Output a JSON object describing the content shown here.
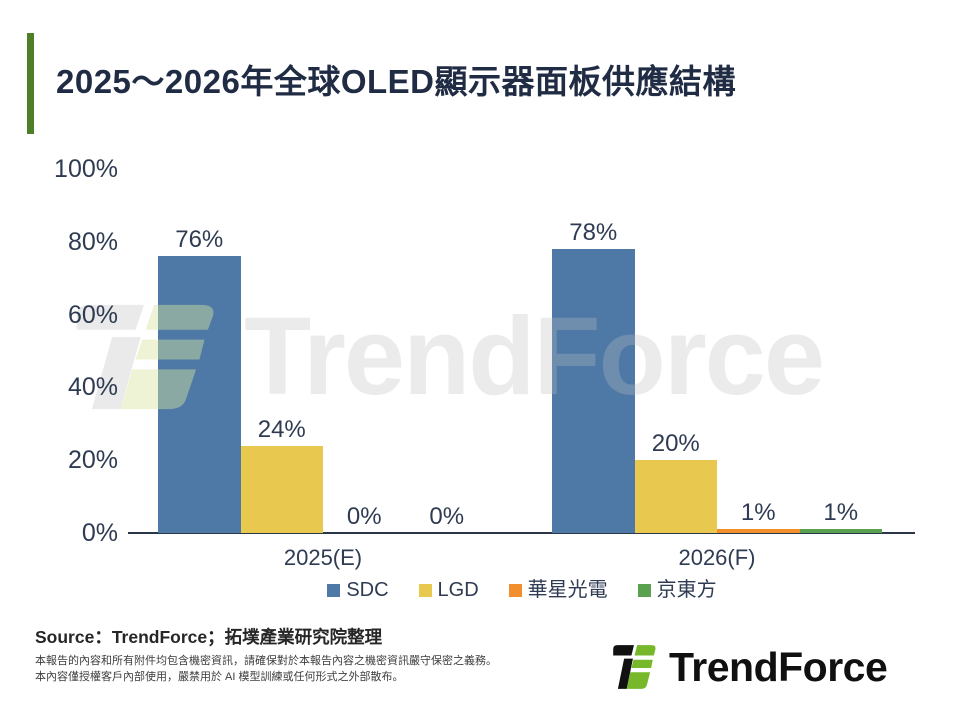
{
  "title": "2025～2026年全球OLED顯示器面板供應結構",
  "chart_data": {
    "type": "bar",
    "title": "2025～2026年全球OLED顯示器面板供應結構",
    "categories": [
      "2025(E)",
      "2026(F)"
    ],
    "series": [
      {
        "name": "SDC",
        "color": "#4E79A7",
        "values": [
          76,
          78
        ]
      },
      {
        "name": "LGD",
        "color": "#E8C84E",
        "values": [
          24,
          20
        ]
      },
      {
        "name": "華星光電",
        "color": "#F28E2B",
        "values": [
          0,
          1
        ]
      },
      {
        "name": "京東方",
        "color": "#59A14F",
        "values": [
          0,
          1
        ]
      }
    ],
    "ylim": [
      0,
      100
    ],
    "y_ticks": [
      0,
      20,
      40,
      60,
      80,
      100
    ],
    "y_tick_suffix": "%",
    "data_label_suffix": "%",
    "grid": false,
    "legend_position": "bottom"
  },
  "watermark": {
    "text": "TrendForce"
  },
  "footer": {
    "source": "Source：TrendForce；拓墣產業研究院整理",
    "disclaimer_line1": "本報告的內容和所有附件均包含機密資訊，請確保對於本報告內容之機密資訊嚴守保密之義務。",
    "disclaimer_line2": "本內容僅授權客戶內部使用，嚴禁用於 AI 模型訓練或任何形式之外部散布。",
    "logo_text": "TrendForce"
  },
  "colors": {
    "accent_green": "#4E7E26",
    "title_navy": "#202C44",
    "axis_navy": "#2A3749",
    "label_navy": "#2E3B52",
    "logo_green": "#76B82A",
    "logo_black": "#111111"
  }
}
